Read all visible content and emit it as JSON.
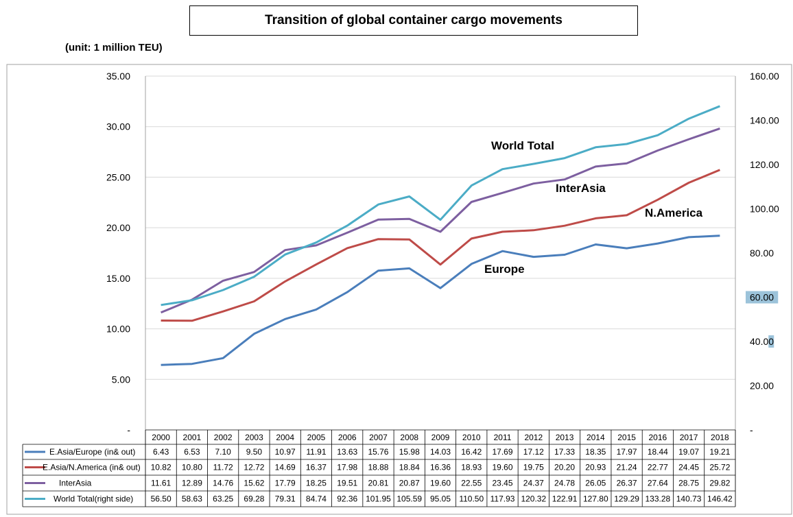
{
  "title": "Transition of global container cargo movements",
  "unit": "(unit: 1 million TEU)",
  "colors": {
    "europe": "#4a7ebb",
    "namerica": "#be4b48",
    "interasia": "#7d5fa0",
    "world": "#4bacc6",
    "grid": "#d9d9d9",
    "border": "#a0a0a0",
    "highlight": "#9cc3da"
  },
  "chart_data": {
    "type": "line",
    "categories": [
      "2000",
      "2001",
      "2002",
      "2003",
      "2004",
      "2005",
      "2006",
      "2007",
      "2008",
      "2009",
      "2010",
      "2011",
      "2012",
      "2013",
      "2014",
      "2015",
      "2016",
      "2017",
      "2018"
    ],
    "y_left": {
      "range": [
        0,
        35
      ],
      "ticks": [
        "-",
        "5.00",
        "10.00",
        "15.00",
        "20.00",
        "25.00",
        "30.00",
        "35.00"
      ]
    },
    "y_right": {
      "range": [
        0,
        160
      ],
      "ticks": [
        "-",
        "20.00",
        "40.00",
        "60.00",
        "80.00",
        "100.00",
        "120.00",
        "140.00",
        "160.00"
      ],
      "highlighted_ticks": [
        "60.00",
        "40.00"
      ]
    },
    "legend_placement": "bottom data table",
    "series": [
      {
        "key": "europe",
        "name": "E.Asia/Europe (in& out)",
        "callout": "Europe",
        "axis": "left",
        "values": [
          6.43,
          6.53,
          7.1,
          9.5,
          10.97,
          11.91,
          13.63,
          15.76,
          15.98,
          14.03,
          16.42,
          17.69,
          17.12,
          17.33,
          18.35,
          17.97,
          18.44,
          19.07,
          19.21
        ],
        "labels": [
          "6.43",
          "6.53",
          "7.10",
          "9.50",
          "10.97",
          "11.91",
          "13.63",
          "15.76",
          "15.98",
          "14.03",
          "16.42",
          "17.69",
          "17.12",
          "17.33",
          "18.35",
          "17.97",
          "18.44",
          "19.07",
          "19.21"
        ]
      },
      {
        "key": "namerica",
        "name": "E.Asia/N.America (in& out)",
        "callout": "N.America",
        "axis": "left",
        "values": [
          10.82,
          10.8,
          11.72,
          12.72,
          14.69,
          16.37,
          17.98,
          18.88,
          18.84,
          16.36,
          18.93,
          19.6,
          19.75,
          20.2,
          20.93,
          21.24,
          22.77,
          24.45,
          25.72
        ],
        "labels": [
          "10.82",
          "10.80",
          "11.72",
          "12.72",
          "14.69",
          "16.37",
          "17.98",
          "18.88",
          "18.84",
          "16.36",
          "18.93",
          "19.60",
          "19.75",
          "20.20",
          "20.93",
          "21.24",
          "22.77",
          "24.45",
          "25.72"
        ]
      },
      {
        "key": "interasia",
        "name": "InterAsia",
        "callout": "InterAsia",
        "axis": "left",
        "values": [
          11.61,
          12.89,
          14.76,
          15.62,
          17.79,
          18.25,
          19.51,
          20.81,
          20.87,
          19.6,
          22.55,
          23.45,
          24.37,
          24.78,
          26.05,
          26.37,
          27.64,
          28.75,
          29.82
        ],
        "labels": [
          "11.61",
          "12.89",
          "14.76",
          "15.62",
          "17.79",
          "18.25",
          "19.51",
          "20.81",
          "20.87",
          "19.60",
          "22.55",
          "23.45",
          "24.37",
          "24.78",
          "26.05",
          "26.37",
          "27.64",
          "28.75",
          "29.82"
        ]
      },
      {
        "key": "world",
        "name": "World Total(right side)",
        "callout": "World Total",
        "axis": "right",
        "values": [
          56.5,
          58.63,
          63.25,
          69.28,
          79.31,
          84.74,
          92.36,
          101.95,
          105.59,
          95.05,
          110.5,
          117.93,
          120.32,
          122.91,
          127.8,
          129.29,
          133.28,
          140.73,
          146.42
        ],
        "labels": [
          "56.50",
          "58.63",
          "63.25",
          "69.28",
          "79.31",
          "84.74",
          "92.36",
          "101.95",
          "105.59",
          "95.05",
          "110.50",
          "117.93",
          "120.32",
          "122.91",
          "127.80",
          "129.29",
          "133.28",
          "140.73",
          "146.42"
        ]
      }
    ]
  }
}
